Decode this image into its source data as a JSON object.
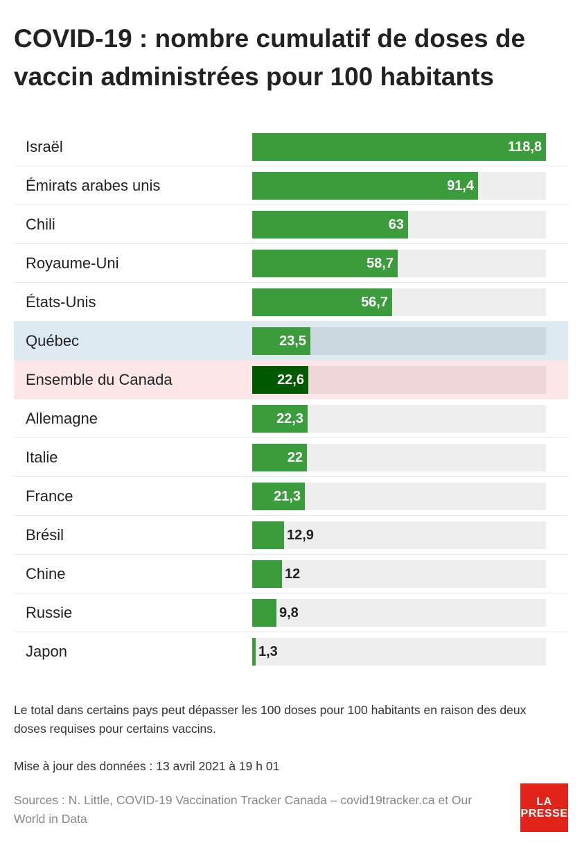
{
  "title": "COVID-19 : nombre cumulatif de doses de vaccin administrées pour 100 habitants",
  "chart_data": {
    "type": "bar",
    "orientation": "horizontal",
    "title": "COVID-19 : nombre cumulatif de doses de vaccin administrées pour 100 habitants",
    "xlim": [
      0,
      118.8
    ],
    "categories": [
      "Israël",
      "Émirats arabes unis",
      "Chili",
      "Royaume-Uni",
      "États-Unis",
      "Québec",
      "Ensemble du Canada",
      "Allemagne",
      "Italie",
      "France",
      "Brésil",
      "Chine",
      "Russie",
      "Japon"
    ],
    "values": [
      118.8,
      91.4,
      63,
      58.7,
      56.7,
      23.5,
      22.6,
      22.3,
      22,
      21.3,
      12.9,
      12,
      9.8,
      1.3
    ],
    "value_labels": [
      "118,8",
      "91,4",
      "63",
      "58,7",
      "56,7",
      "23,5",
      "22,6",
      "22,3",
      "22",
      "21,3",
      "12,9",
      "12",
      "9,8",
      "1,3"
    ],
    "highlights": {
      "Québec": "quebec",
      "Ensemble du Canada": "canada"
    },
    "colors": {
      "bar": "#3a9c3a",
      "bar_canada": "#005a00",
      "track": "#eeeeee",
      "quebec_bg": "#dde9f1",
      "canada_bg": "#fde6e7"
    }
  },
  "notes": {
    "footnote": "Le total dans certains pays peut dépasser les 100 doses pour 100 habitants en raison des deux doses requises pour certains vaccins.",
    "updated": "Mise à jour des données : 13 avril 2021 à 19 h 01",
    "sources": "Sources : N. Little, COVID-19 Vaccination Tracker Canada – covid19tracker.ca et Our World in Data"
  },
  "logo": {
    "line1": "LA",
    "line2": "PRESSE",
    "color": "#e2231a"
  }
}
